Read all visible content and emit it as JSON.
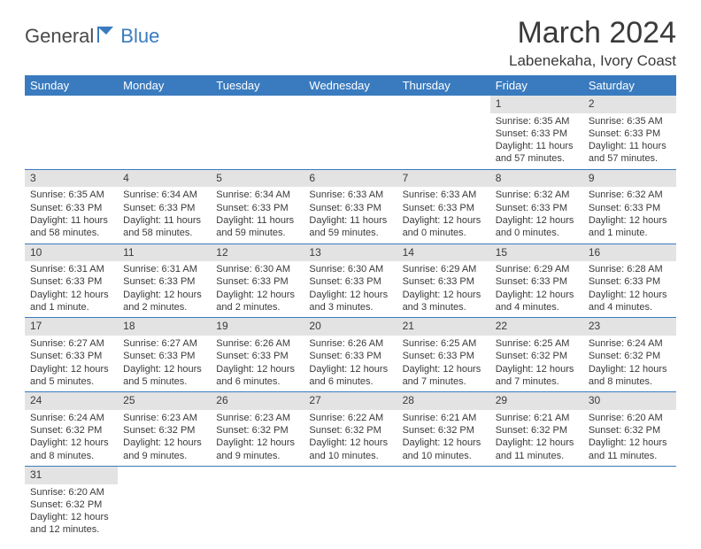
{
  "logo": {
    "part1": "General",
    "part2": "Blue"
  },
  "title": "March 2024",
  "subtitle": "Labenekaha, Ivory Coast",
  "colors": {
    "header_bg": "#3a7bbf",
    "header_fg": "#ffffff",
    "daynum_bg": "#e3e3e3",
    "border": "#3a7bbf",
    "text": "#3a3a3a",
    "bg": "#ffffff"
  },
  "day_labels": [
    "Sunday",
    "Monday",
    "Tuesday",
    "Wednesday",
    "Thursday",
    "Friday",
    "Saturday"
  ],
  "grid": {
    "rows": 6,
    "cols": 7,
    "first_day_col": 5,
    "last_day": 31
  },
  "days": {
    "1": {
      "sunrise": "6:35 AM",
      "sunset": "6:33 PM",
      "daylight": "11 hours and 57 minutes."
    },
    "2": {
      "sunrise": "6:35 AM",
      "sunset": "6:33 PM",
      "daylight": "11 hours and 57 minutes."
    },
    "3": {
      "sunrise": "6:35 AM",
      "sunset": "6:33 PM",
      "daylight": "11 hours and 58 minutes."
    },
    "4": {
      "sunrise": "6:34 AM",
      "sunset": "6:33 PM",
      "daylight": "11 hours and 58 minutes."
    },
    "5": {
      "sunrise": "6:34 AM",
      "sunset": "6:33 PM",
      "daylight": "11 hours and 59 minutes."
    },
    "6": {
      "sunrise": "6:33 AM",
      "sunset": "6:33 PM",
      "daylight": "11 hours and 59 minutes."
    },
    "7": {
      "sunrise": "6:33 AM",
      "sunset": "6:33 PM",
      "daylight": "12 hours and 0 minutes."
    },
    "8": {
      "sunrise": "6:32 AM",
      "sunset": "6:33 PM",
      "daylight": "12 hours and 0 minutes."
    },
    "9": {
      "sunrise": "6:32 AM",
      "sunset": "6:33 PM",
      "daylight": "12 hours and 1 minute."
    },
    "10": {
      "sunrise": "6:31 AM",
      "sunset": "6:33 PM",
      "daylight": "12 hours and 1 minute."
    },
    "11": {
      "sunrise": "6:31 AM",
      "sunset": "6:33 PM",
      "daylight": "12 hours and 2 minutes."
    },
    "12": {
      "sunrise": "6:30 AM",
      "sunset": "6:33 PM",
      "daylight": "12 hours and 2 minutes."
    },
    "13": {
      "sunrise": "6:30 AM",
      "sunset": "6:33 PM",
      "daylight": "12 hours and 3 minutes."
    },
    "14": {
      "sunrise": "6:29 AM",
      "sunset": "6:33 PM",
      "daylight": "12 hours and 3 minutes."
    },
    "15": {
      "sunrise": "6:29 AM",
      "sunset": "6:33 PM",
      "daylight": "12 hours and 4 minutes."
    },
    "16": {
      "sunrise": "6:28 AM",
      "sunset": "6:33 PM",
      "daylight": "12 hours and 4 minutes."
    },
    "17": {
      "sunrise": "6:27 AM",
      "sunset": "6:33 PM",
      "daylight": "12 hours and 5 minutes."
    },
    "18": {
      "sunrise": "6:27 AM",
      "sunset": "6:33 PM",
      "daylight": "12 hours and 5 minutes."
    },
    "19": {
      "sunrise": "6:26 AM",
      "sunset": "6:33 PM",
      "daylight": "12 hours and 6 minutes."
    },
    "20": {
      "sunrise": "6:26 AM",
      "sunset": "6:33 PM",
      "daylight": "12 hours and 6 minutes."
    },
    "21": {
      "sunrise": "6:25 AM",
      "sunset": "6:33 PM",
      "daylight": "12 hours and 7 minutes."
    },
    "22": {
      "sunrise": "6:25 AM",
      "sunset": "6:32 PM",
      "daylight": "12 hours and 7 minutes."
    },
    "23": {
      "sunrise": "6:24 AM",
      "sunset": "6:32 PM",
      "daylight": "12 hours and 8 minutes."
    },
    "24": {
      "sunrise": "6:24 AM",
      "sunset": "6:32 PM",
      "daylight": "12 hours and 8 minutes."
    },
    "25": {
      "sunrise": "6:23 AM",
      "sunset": "6:32 PM",
      "daylight": "12 hours and 9 minutes."
    },
    "26": {
      "sunrise": "6:23 AM",
      "sunset": "6:32 PM",
      "daylight": "12 hours and 9 minutes."
    },
    "27": {
      "sunrise": "6:22 AM",
      "sunset": "6:32 PM",
      "daylight": "12 hours and 10 minutes."
    },
    "28": {
      "sunrise": "6:21 AM",
      "sunset": "6:32 PM",
      "daylight": "12 hours and 10 minutes."
    },
    "29": {
      "sunrise": "6:21 AM",
      "sunset": "6:32 PM",
      "daylight": "12 hours and 11 minutes."
    },
    "30": {
      "sunrise": "6:20 AM",
      "sunset": "6:32 PM",
      "daylight": "12 hours and 11 minutes."
    },
    "31": {
      "sunrise": "6:20 AM",
      "sunset": "6:32 PM",
      "daylight": "12 hours and 12 minutes."
    }
  },
  "labels": {
    "sunrise": "Sunrise:",
    "sunset": "Sunset:",
    "daylight": "Daylight:"
  }
}
